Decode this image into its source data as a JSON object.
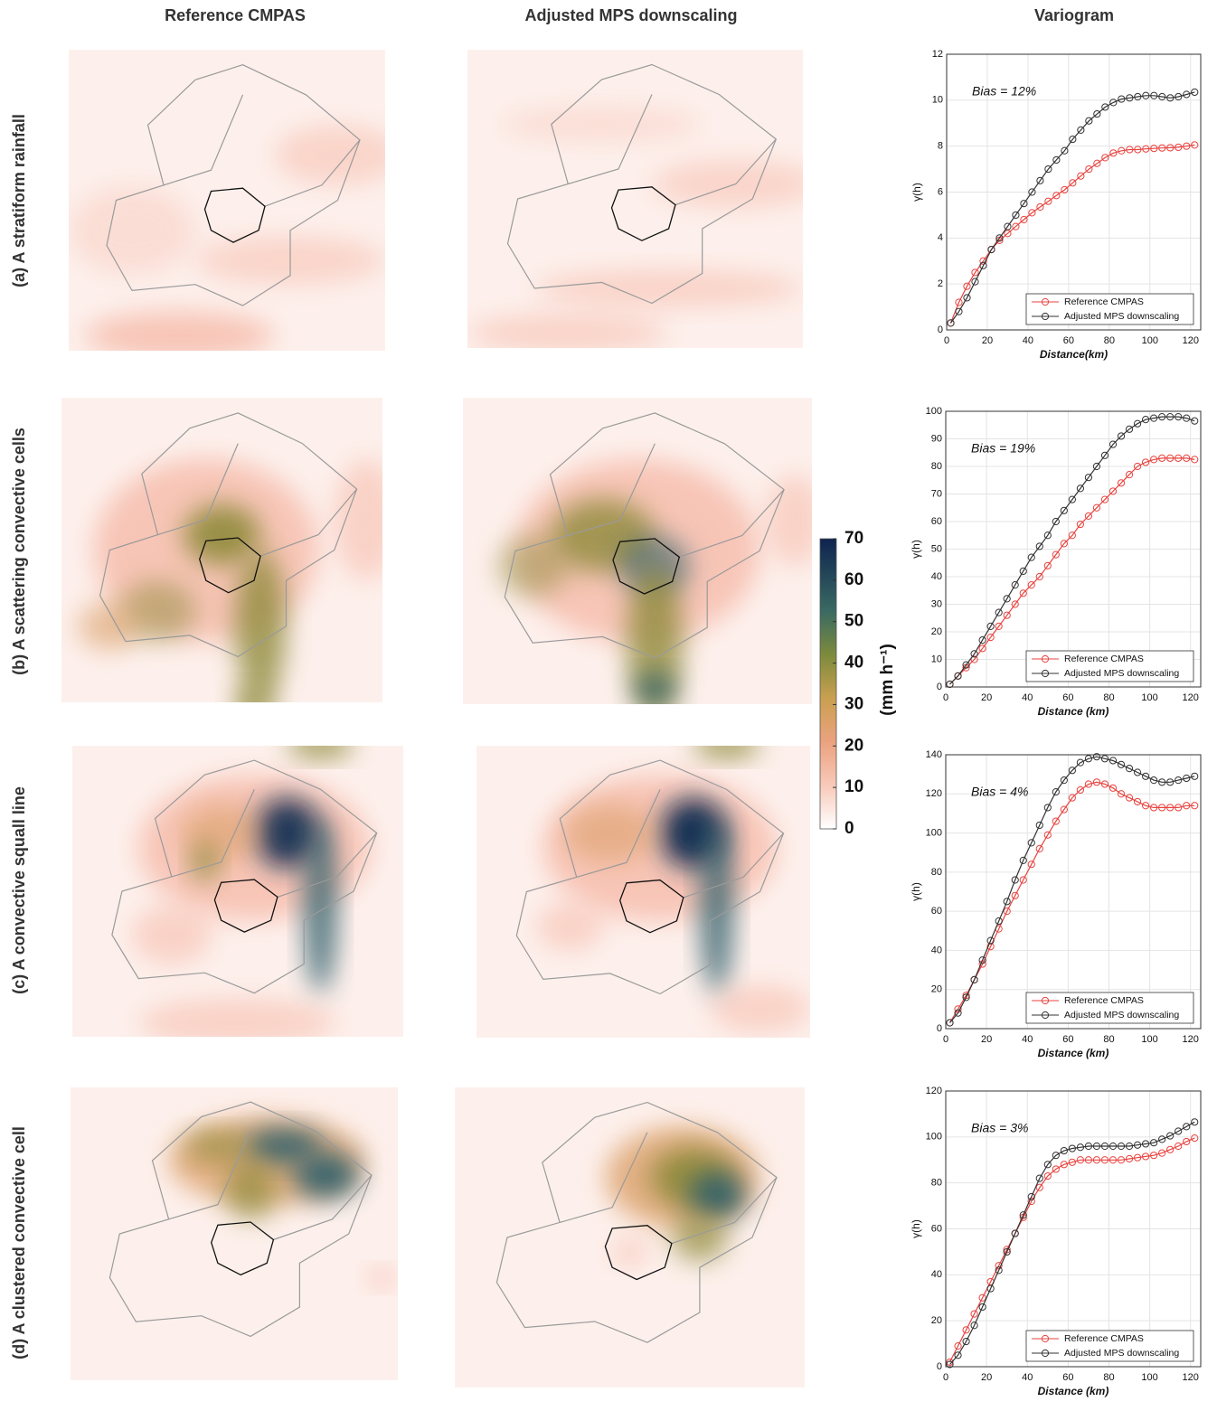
{
  "column_headers": [
    "Reference CMPAS",
    "Adjusted MPS downscaling",
    "Variogram"
  ],
  "row_labels": [
    "(a) A stratiform rainfall",
    "(b) A scattering convective cells",
    "(c) A convective squall line",
    "(d) A clustered convective cell"
  ],
  "colorbar": {
    "label": "(mm h⁻¹)",
    "lim": [
      0,
      70
    ],
    "ticks": [
      0,
      10,
      20,
      30,
      40,
      50,
      60,
      70
    ]
  },
  "chart_data": [
    {
      "type": "line",
      "annotation": "Bias = 12%",
      "xlabel": "Distance(km)",
      "ylabel": "γ(h)",
      "x": [
        2,
        6,
        10,
        14,
        18,
        22,
        26,
        30,
        34,
        38,
        42,
        46,
        50,
        54,
        58,
        62,
        66,
        70,
        74,
        78,
        82,
        86,
        90,
        94,
        98,
        102,
        106,
        110,
        114,
        118,
        122
      ],
      "xlim": [
        0,
        125
      ],
      "xticks": [
        0,
        20,
        40,
        60,
        80,
        100,
        120
      ],
      "ylim": [
        0,
        12
      ],
      "yticks": [
        0,
        2,
        4,
        6,
        8,
        10,
        12
      ],
      "grid": true,
      "legend": "lower right",
      "series": [
        {
          "name": "Reference CMPAS",
          "color": "#e8433f",
          "values": [
            0.3,
            1.2,
            1.9,
            2.5,
            3.0,
            3.5,
            3.9,
            4.2,
            4.5,
            4.8,
            5.1,
            5.35,
            5.6,
            5.85,
            6.1,
            6.4,
            6.7,
            7.0,
            7.25,
            7.5,
            7.7,
            7.8,
            7.85,
            7.85,
            7.88,
            7.9,
            7.92,
            7.93,
            7.95,
            8.0,
            8.05
          ]
        },
        {
          "name": "Adjusted MPS downscaling",
          "color": "#333333",
          "values": [
            0.3,
            0.8,
            1.4,
            2.1,
            2.8,
            3.5,
            4.0,
            4.5,
            5.0,
            5.5,
            6.0,
            6.5,
            7.0,
            7.4,
            7.8,
            8.3,
            8.7,
            9.1,
            9.4,
            9.7,
            9.9,
            10.05,
            10.1,
            10.15,
            10.2,
            10.2,
            10.15,
            10.1,
            10.15,
            10.25,
            10.35
          ]
        }
      ]
    },
    {
      "type": "line",
      "annotation": "Bias = 19%",
      "xlabel": "Distance (km)",
      "ylabel": "γ(h)",
      "x": [
        2,
        6,
        10,
        14,
        18,
        22,
        26,
        30,
        34,
        38,
        42,
        46,
        50,
        54,
        58,
        62,
        66,
        70,
        74,
        78,
        82,
        86,
        90,
        94,
        98,
        102,
        106,
        110,
        114,
        118,
        122
      ],
      "xlim": [
        0,
        125
      ],
      "xticks": [
        0,
        20,
        40,
        60,
        80,
        100,
        120
      ],
      "ylim": [
        0,
        100
      ],
      "yticks": [
        0,
        10,
        20,
        30,
        40,
        50,
        60,
        70,
        80,
        90,
        100
      ],
      "grid": true,
      "legend": "lower right",
      "series": [
        {
          "name": "Reference CMPAS",
          "color": "#e8433f",
          "values": [
            1,
            4,
            7,
            10,
            14,
            18,
            22,
            26,
            30,
            34,
            37,
            40,
            44,
            48,
            52,
            55,
            59,
            62,
            65,
            68,
            71,
            74,
            77,
            80,
            81.5,
            82.5,
            83,
            83,
            83,
            83,
            82.5
          ]
        },
        {
          "name": "Adjusted MPS downscaling",
          "color": "#333333",
          "values": [
            1,
            4,
            8,
            12,
            17,
            22,
            27,
            32,
            37,
            42,
            47,
            51,
            55,
            60,
            64,
            68,
            72,
            76,
            80,
            84,
            88,
            91,
            93.5,
            95.5,
            97,
            97.5,
            98,
            98,
            98,
            97.5,
            96.5
          ]
        }
      ]
    },
    {
      "type": "line",
      "annotation": "Bias = 4%",
      "xlabel": "Distance (km)",
      "ylabel": "γ(h)",
      "x": [
        2,
        6,
        10,
        14,
        18,
        22,
        26,
        30,
        34,
        38,
        42,
        46,
        50,
        54,
        58,
        62,
        66,
        70,
        74,
        78,
        82,
        86,
        90,
        94,
        98,
        102,
        106,
        110,
        114,
        118,
        122
      ],
      "xlim": [
        0,
        125
      ],
      "xticks": [
        0,
        20,
        40,
        60,
        80,
        100,
        120
      ],
      "ylim": [
        0,
        140
      ],
      "yticks": [
        0,
        20,
        40,
        60,
        80,
        100,
        120,
        140
      ],
      "grid": true,
      "legend": "lower right",
      "series": [
        {
          "name": "Reference CMPAS",
          "color": "#e8433f",
          "values": [
            3,
            10,
            17,
            25,
            33,
            42,
            51,
            60,
            68,
            76,
            84,
            92,
            99,
            106,
            112,
            118,
            122,
            125,
            126,
            125,
            123,
            120,
            118,
            116,
            114,
            113,
            113,
            113,
            113,
            114,
            114
          ]
        },
        {
          "name": "Adjusted MPS downscaling",
          "color": "#333333",
          "values": [
            3,
            8,
            16,
            25,
            35,
            45,
            55,
            65,
            76,
            86,
            95,
            104,
            113,
            121,
            127,
            132,
            136,
            138,
            139,
            138,
            137,
            135,
            133,
            131,
            129,
            127,
            126,
            126,
            127,
            128,
            129
          ]
        }
      ]
    },
    {
      "type": "line",
      "annotation": "Bias = 3%",
      "xlabel": "Distance (km)",
      "ylabel": "γ(h)",
      "x": [
        2,
        6,
        10,
        14,
        18,
        22,
        26,
        30,
        34,
        38,
        42,
        46,
        50,
        54,
        58,
        62,
        66,
        70,
        74,
        78,
        82,
        86,
        90,
        94,
        98,
        102,
        106,
        110,
        114,
        118,
        122
      ],
      "xlim": [
        0,
        125
      ],
      "xticks": [
        0,
        20,
        40,
        60,
        80,
        100,
        120
      ],
      "ylim": [
        0,
        120
      ],
      "yticks": [
        0,
        20,
        40,
        60,
        80,
        100,
        120
      ],
      "grid": true,
      "legend": "lower right",
      "series": [
        {
          "name": "Reference CMPAS",
          "color": "#e8433f",
          "values": [
            2,
            9,
            16,
            23,
            30,
            37,
            44,
            51,
            58,
            65,
            72,
            78,
            83,
            86,
            88,
            89,
            90,
            90,
            90,
            90,
            90,
            90,
            90.5,
            91,
            91.5,
            92,
            93,
            94.5,
            96,
            98,
            99.5
          ]
        },
        {
          "name": "Adjusted MPS downscaling",
          "color": "#333333",
          "values": [
            1,
            5,
            11,
            18,
            26,
            34,
            42,
            50,
            58,
            66,
            74,
            82,
            88,
            92,
            94,
            95,
            95.5,
            96,
            96,
            96,
            96,
            96,
            96,
            96.5,
            97,
            97.5,
            99,
            100.5,
            102.5,
            104.5,
            106.5
          ]
        }
      ]
    }
  ]
}
